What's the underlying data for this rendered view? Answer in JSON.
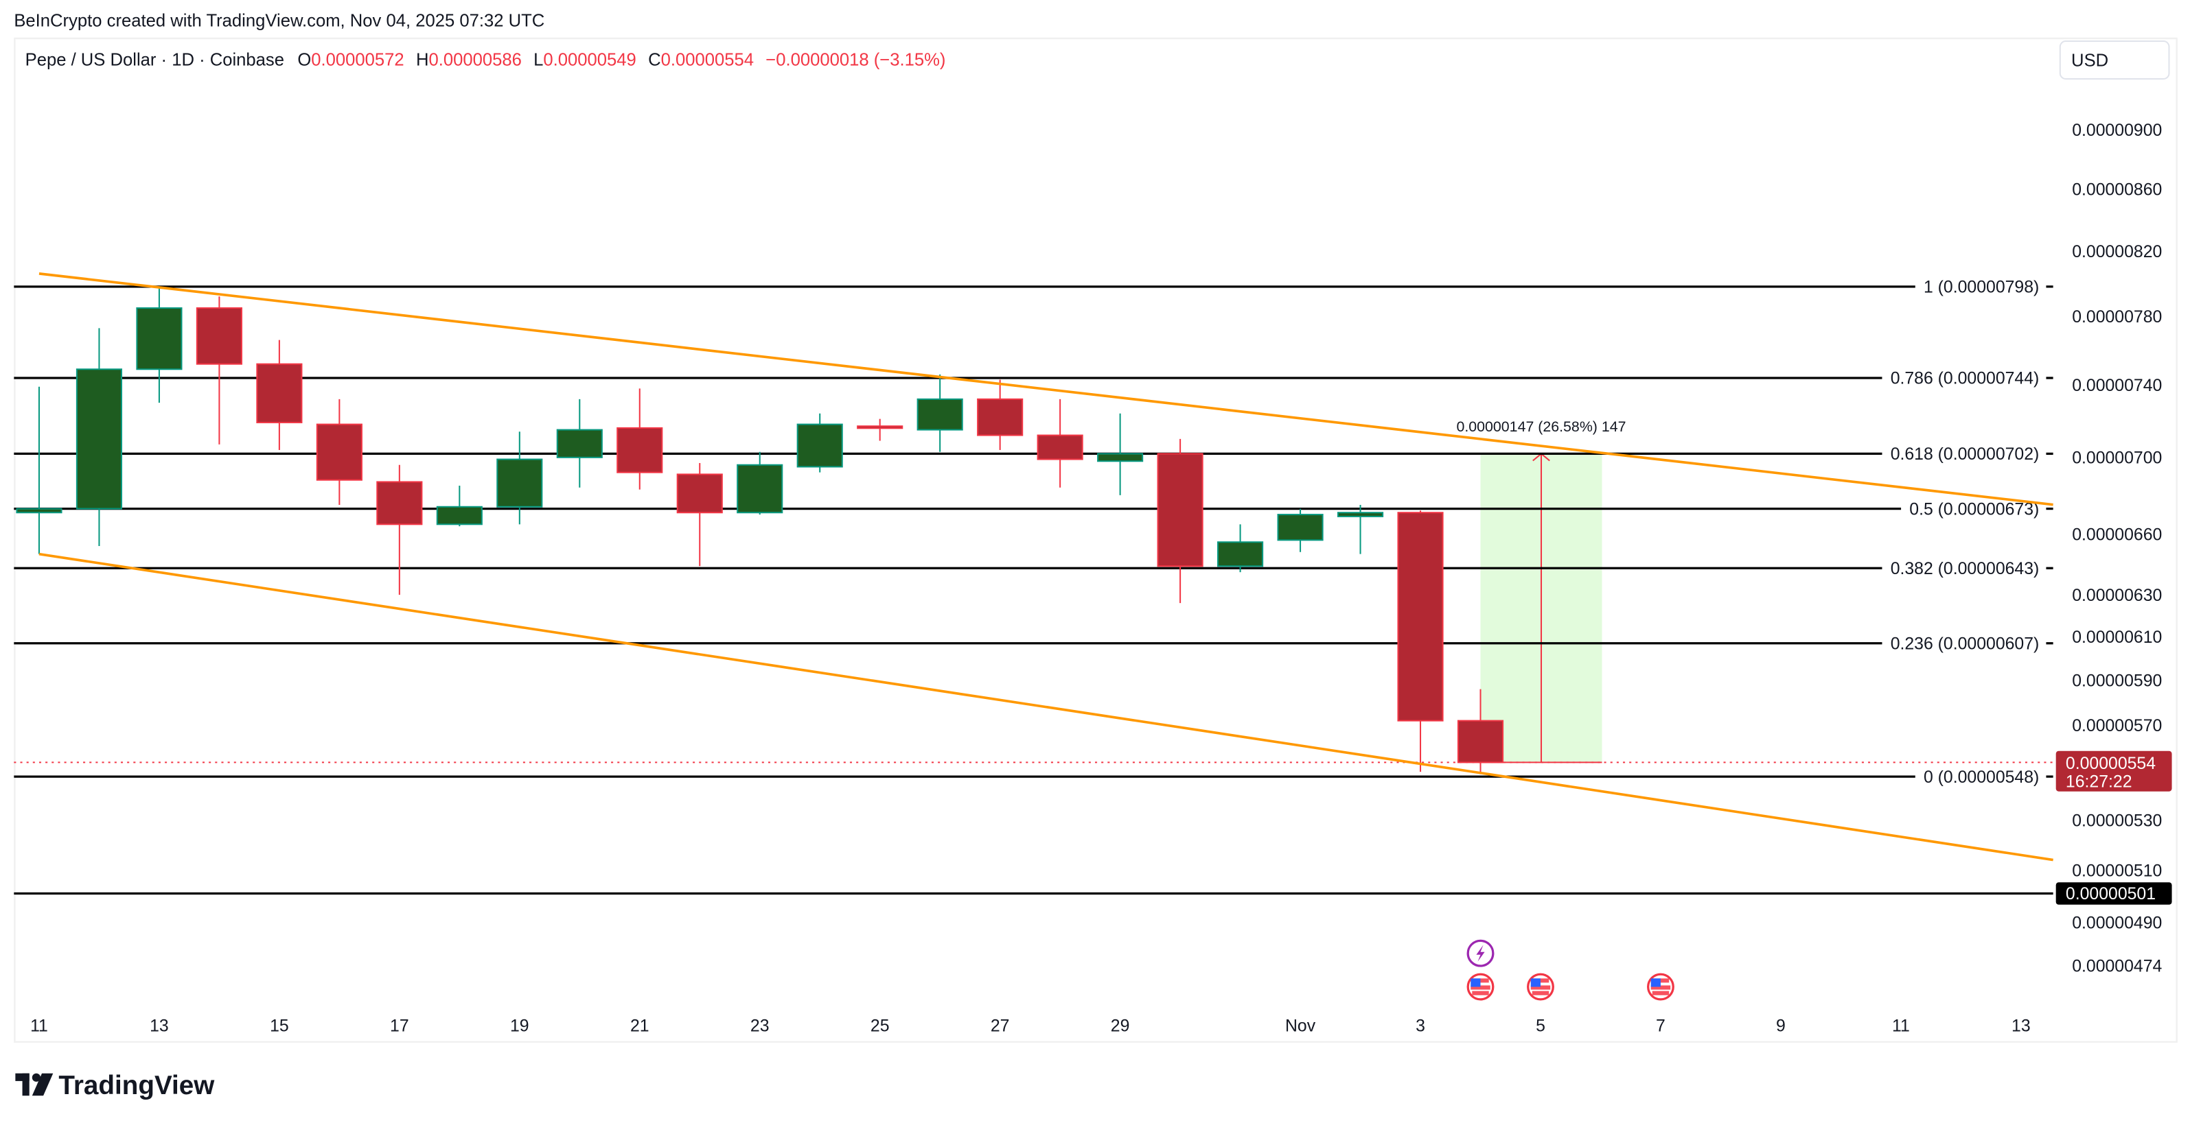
{
  "watermark": "BeInCrypto created with TradingView.com, Nov 04, 2025 07:32 UTC",
  "legend": {
    "symbol": "Pepe / US Dollar · 1D · Coinbase",
    "o_label": "O",
    "o_value": "0.00000572",
    "h_label": "H",
    "h_value": "0.00000586",
    "l_label": "L",
    "l_value": "0.00000549",
    "c_label": "C",
    "c_value": "0.00000554",
    "change": "−0.00000018 (−3.15%)"
  },
  "currency_button": "USD",
  "logo_text": "TradingView",
  "colors": {
    "up_body": "#1e5c20",
    "up_border": "#089981",
    "down_body": "#b22833",
    "down_border": "#f23645",
    "trendline": "#ff9800",
    "fib_line": "#000000",
    "measure_fill": "#e2fbdc",
    "measure_line": "#f23645"
  },
  "chart_data": {
    "type": "candlestick",
    "title": "Pepe / US Dollar · 1D · Coinbase",
    "y_scale": "log",
    "ylim": [
      4.6e-06,
      9.5e-06
    ],
    "grid": false,
    "x_ticks": [
      "11",
      "13",
      "15",
      "17",
      "19",
      "21",
      "23",
      "25",
      "27",
      "29",
      "Nov",
      "3",
      "5",
      "7",
      "9",
      "11",
      "13"
    ],
    "x_tick_dates": [
      "2025-10-11",
      "2025-10-13",
      "2025-10-15",
      "2025-10-17",
      "2025-10-19",
      "2025-10-21",
      "2025-10-23",
      "2025-10-25",
      "2025-10-27",
      "2025-10-29",
      "2025-11-01",
      "2025-11-03",
      "2025-11-05",
      "2025-11-07",
      "2025-11-09",
      "2025-11-11",
      "2025-11-13"
    ],
    "y_ticks": [
      "0.00000900",
      "0.00000860",
      "0.00000820",
      "0.00000780",
      "0.00000740",
      "0.00000700",
      "0.00000660",
      "0.00000630",
      "0.00000610",
      "0.00000590",
      "0.00000570",
      "0.00000530",
      "0.00000510",
      "0.00000490",
      "0.00000474"
    ],
    "candles": [
      {
        "date": "2025-10-11",
        "o": 6.71e-06,
        "h": 7.39e-06,
        "l": 6.5e-06,
        "c": 6.73e-06
      },
      {
        "date": "2025-10-12",
        "o": 6.73e-06,
        "h": 7.73e-06,
        "l": 6.54e-06,
        "c": 7.49e-06
      },
      {
        "date": "2025-10-13",
        "o": 7.49e-06,
        "h": 7.98e-06,
        "l": 7.3e-06,
        "c": 7.85e-06
      },
      {
        "date": "2025-10-14",
        "o": 7.85e-06,
        "h": 7.92e-06,
        "l": 7.07e-06,
        "c": 7.52e-06
      },
      {
        "date": "2025-10-15",
        "o": 7.52e-06,
        "h": 7.66e-06,
        "l": 7.04e-06,
        "c": 7.19e-06
      },
      {
        "date": "2025-10-16",
        "o": 7.18e-06,
        "h": 7.32e-06,
        "l": 6.75e-06,
        "c": 6.88e-06
      },
      {
        "date": "2025-10-17",
        "o": 6.87e-06,
        "h": 6.96e-06,
        "l": 6.3e-06,
        "c": 6.65e-06
      },
      {
        "date": "2025-10-18",
        "o": 6.65e-06,
        "h": 6.85e-06,
        "l": 6.64e-06,
        "c": 6.74e-06
      },
      {
        "date": "2025-10-19",
        "o": 6.74e-06,
        "h": 7.14e-06,
        "l": 6.65e-06,
        "c": 6.99e-06
      },
      {
        "date": "2025-10-20",
        "o": 7e-06,
        "h": 7.32e-06,
        "l": 6.84e-06,
        "c": 7.15e-06
      },
      {
        "date": "2025-10-21",
        "o": 7.16e-06,
        "h": 7.38e-06,
        "l": 6.83e-06,
        "c": 6.92e-06
      },
      {
        "date": "2025-10-22",
        "o": 6.91e-06,
        "h": 6.97e-06,
        "l": 6.44e-06,
        "c": 6.71e-06
      },
      {
        "date": "2025-10-23",
        "o": 6.71e-06,
        "h": 7.03e-06,
        "l": 6.7e-06,
        "c": 6.96e-06
      },
      {
        "date": "2025-10-24",
        "o": 6.95e-06,
        "h": 7.24e-06,
        "l": 6.92e-06,
        "c": 7.18e-06
      },
      {
        "date": "2025-10-25",
        "o": 7.17e-06,
        "h": 7.21e-06,
        "l": 7.09e-06,
        "c": 7.16e-06
      },
      {
        "date": "2025-10-26",
        "o": 7.15e-06,
        "h": 7.46e-06,
        "l": 7.03e-06,
        "c": 7.32e-06
      },
      {
        "date": "2025-10-27",
        "o": 7.32e-06,
        "h": 7.43e-06,
        "l": 7.04e-06,
        "c": 7.12e-06
      },
      {
        "date": "2025-10-28",
        "o": 7.12e-06,
        "h": 7.32e-06,
        "l": 6.84e-06,
        "c": 6.99e-06
      },
      {
        "date": "2025-10-29",
        "o": 6.98e-06,
        "h": 7.24e-06,
        "l": 6.8e-06,
        "c": 7.02e-06
      },
      {
        "date": "2025-10-30",
        "o": 7.02e-06,
        "h": 7.1e-06,
        "l": 6.26e-06,
        "c": 6.44e-06
      },
      {
        "date": "2025-10-31",
        "o": 6.44e-06,
        "h": 6.65e-06,
        "l": 6.41e-06,
        "c": 6.56e-06
      },
      {
        "date": "2025-11-01",
        "o": 6.57e-06,
        "h": 6.73e-06,
        "l": 6.51e-06,
        "c": 6.7e-06
      },
      {
        "date": "2025-11-02",
        "o": 6.69e-06,
        "h": 6.75e-06,
        "l": 6.5e-06,
        "c": 6.71e-06
      },
      {
        "date": "2025-11-03",
        "o": 6.71e-06,
        "h": 6.72e-06,
        "l": 5.5e-06,
        "c": 5.72e-06
      },
      {
        "date": "2025-11-04",
        "o": 5.72e-06,
        "h": 5.86e-06,
        "l": 5.49e-06,
        "c": 5.54e-06
      }
    ],
    "fib_levels": [
      {
        "ratio": "1",
        "price": 7.98e-06,
        "label": "1 (0.00000798)"
      },
      {
        "ratio": "0.786",
        "price": 7.44e-06,
        "label": "0.786 (0.00000744)"
      },
      {
        "ratio": "0.618",
        "price": 7.02e-06,
        "label": "0.618 (0.00000702)"
      },
      {
        "ratio": "0.5",
        "price": 6.73e-06,
        "label": "0.5 (0.00000673)"
      },
      {
        "ratio": "0.382",
        "price": 6.43e-06,
        "label": "0.382 (0.00000643)"
      },
      {
        "ratio": "0.236",
        "price": 6.07e-06,
        "label": "0.236 (0.00000607)"
      },
      {
        "ratio": "0",
        "price": 5.48e-06,
        "label": "0 (0.00000548)"
      }
    ],
    "trendlines": [
      {
        "name": "upper",
        "start": {
          "date": "2025-10-11",
          "price": 8.06e-06
        },
        "end": {
          "date": "2025-11-13",
          "price": 6.77e-06
        }
      },
      {
        "name": "lower",
        "start": {
          "date": "2025-10-11",
          "price": 6.5e-06
        },
        "end": {
          "date": "2025-11-13",
          "price": 5.16e-06
        }
      }
    ],
    "horizontal_line": {
      "price": 5.01e-06,
      "label": "0.00000501"
    },
    "current_price": {
      "price": 5.54e-06,
      "label": "0.00000554",
      "countdown": "16:27:22"
    },
    "measure": {
      "start_date": "2025-11-04",
      "end_date": "2025-11-06",
      "from_price": 5.54e-06,
      "to_price": 7.02e-06,
      "label": "0.00000147 (26.58%) 147"
    },
    "events": [
      {
        "date": "2025-11-04",
        "type": "lightning-icon",
        "row": 0
      },
      {
        "date": "2025-11-04",
        "type": "us-flag-icon",
        "row": 1
      },
      {
        "date": "2025-11-05",
        "type": "us-flag-icon",
        "row": 1
      },
      {
        "date": "2025-11-07",
        "type": "us-flag-icon",
        "row": 1
      }
    ]
  }
}
